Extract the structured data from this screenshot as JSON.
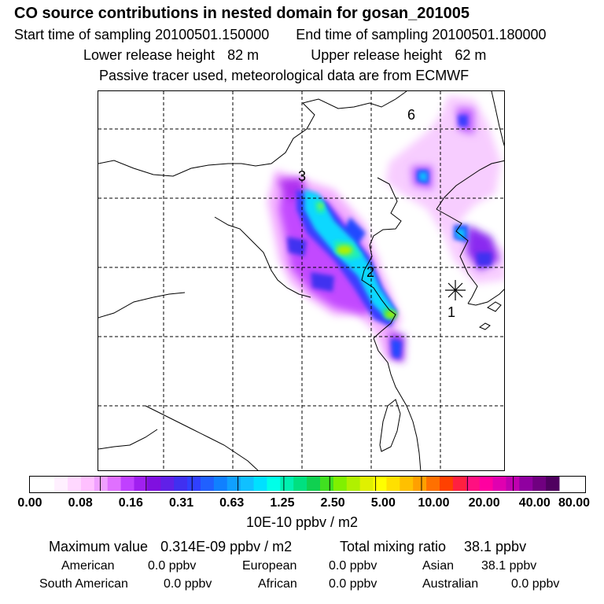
{
  "header": {
    "title": "CO  source contributions in nested domain for gosan_201005",
    "start_label": "Start time of sampling",
    "start_value": "20100501.150000",
    "end_label": "End time of sampling",
    "end_value": "20100501.180000",
    "lower_label": "Lower release height",
    "lower_value": "82 m",
    "upper_label": "Upper release height",
    "upper_value": "62 m",
    "tracer_note": "Passive tracer used, meteorological data are from ECMWF"
  },
  "map": {
    "markers": [
      {
        "label": "1"
      },
      {
        "label": "2"
      },
      {
        "label": "3"
      },
      {
        "label": "6"
      }
    ],
    "station_symbol": "asterisk-icon"
  },
  "colorbar": {
    "tick_labels": [
      "0.00",
      "0.08",
      "0.16",
      "0.31",
      "0.63",
      "1.25",
      "2.50",
      "5.00",
      "10.00",
      "20.00",
      "40.00",
      "80.00"
    ],
    "colors": [
      "#fff0ff",
      "#ffd8ff",
      "#ffc0ff",
      "#f0a0ff",
      "#e070ff",
      "#c040ff",
      "#a020f0",
      "#8010e0",
      "#6020e8",
      "#4030f0",
      "#3040ff",
      "#2060ff",
      "#1080ff",
      "#10a0ff",
      "#10c0ff",
      "#00e0ff",
      "#00ffe8",
      "#00f0b0",
      "#00e080",
      "#10d050",
      "#40e020",
      "#80f000",
      "#b0f000",
      "#e0f000",
      "#ffff00",
      "#ffe000",
      "#ffc000",
      "#ffa000",
      "#ff7000",
      "#ff4000",
      "#ff2040",
      "#ff1080",
      "#ff00a0",
      "#e000b0",
      "#c000b0",
      "#9000a0",
      "#700080",
      "#500060"
    ],
    "units": "10E-10 ppbv / m2"
  },
  "stats": {
    "max_label": "Maximum value",
    "max_value": "0.314E-09 ppbv / m2",
    "total_label": "Total mixing ratio",
    "total_value": "38.1 ppbv",
    "regions": [
      {
        "name": "American",
        "value": "0.0 ppbv"
      },
      {
        "name": "European",
        "value": "0.0 ppbv"
      },
      {
        "name": "Asian",
        "value": "38.1 ppbv"
      },
      {
        "name": "South American",
        "value": "0.0 ppbv"
      },
      {
        "name": "African",
        "value": "0.0 ppbv"
      },
      {
        "name": "Australian",
        "value": "0.0 ppbv"
      }
    ]
  }
}
